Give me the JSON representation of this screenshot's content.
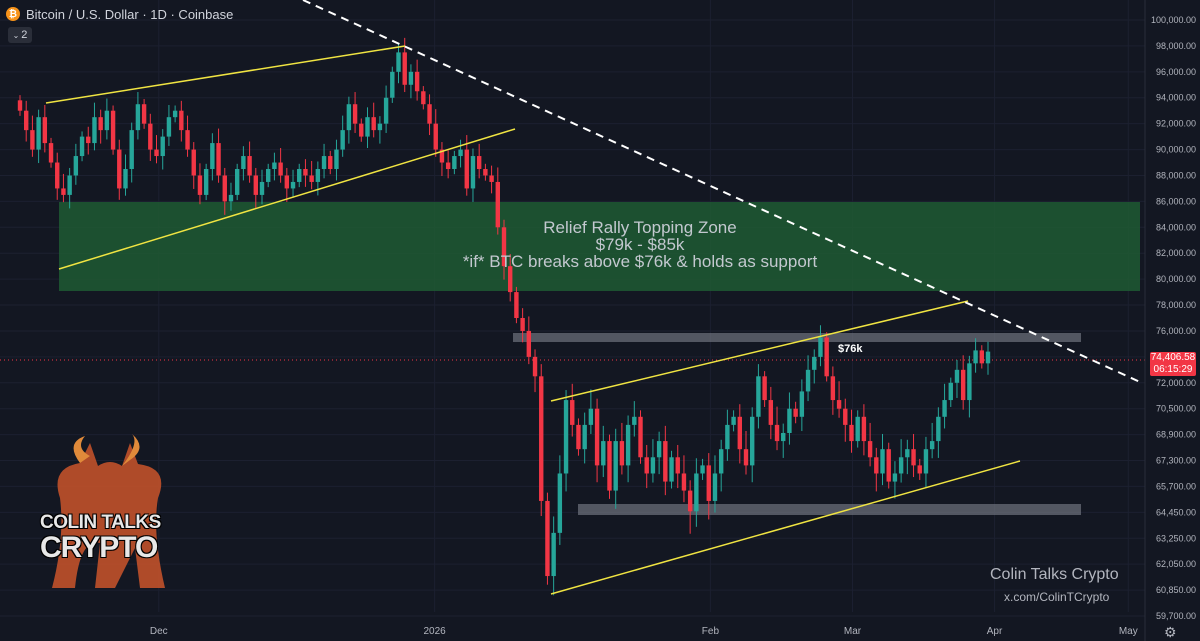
{
  "header": {
    "title": "Bitcoin / U.S. Dollar · 1D · Coinbase",
    "coin_symbol": "₿",
    "indicator_count": "2"
  },
  "annotations": {
    "zone_title": "Relief Rally Topping Zone",
    "zone_range": "$79k - $85k",
    "zone_condition": "*if* BTC breaks above $76k & holds as support",
    "level_label": "$76k",
    "brand": "Colin Talks Crypto",
    "handle": "x.com/ColinTCrypto",
    "logo_line1": "COLIN TALKS",
    "logo_line2": "CRYPTO"
  },
  "price_tag": {
    "price": "74,406.58",
    "countdown": "06:15:29"
  },
  "colors": {
    "up": "#26a69a",
    "down": "#f23645",
    "trend": "#f0e442",
    "zone": "#1e5a32",
    "background": "#131722"
  },
  "chart_data": {
    "type": "candlestick",
    "title": "Bitcoin / U.S. Dollar · 1D · Coinbase",
    "ylim": [
      59000,
      100800
    ],
    "y_ticks": [
      "100,000.00",
      "98,000.00",
      "96,000.00",
      "94,000.00",
      "92,000.00",
      "90,000.00",
      "88,000.00",
      "86,000.00",
      "84,000.00",
      "82,000.00",
      "80,000.00",
      "78,000.00",
      "76,000.00",
      "74,000.00",
      "72,000.00",
      "70,500.00",
      "68,900.00",
      "67,300.00",
      "65,700.00",
      "64,450.00",
      "63,250.00",
      "62,050.00",
      "60,850.00",
      "59,700.00"
    ],
    "x_ticks": [
      {
        "label": "Dec",
        "x": 0.17
      },
      {
        "label": "2026",
        "x": 0.5
      },
      {
        "label": "Feb",
        "x": 0.83
      },
      {
        "label": "Mar",
        "x": 1.0
      },
      {
        "label": "Apr",
        "x": 1.17
      },
      {
        "label": "May",
        "x": 1.33
      }
    ],
    "x_range": [
      -0.02,
      1.35
    ],
    "closes": [
      93000,
      91500,
      90000,
      92500,
      90500,
      89000,
      87000,
      86500,
      88000,
      89500,
      91000,
      90500,
      92500,
      91500,
      93000,
      90000,
      87000,
      88500,
      91500,
      93500,
      92000,
      90000,
      89500,
      91000,
      92500,
      93000,
      91500,
      90000,
      88000,
      86500,
      88500,
      90500,
      88000,
      86000,
      86500,
      88500,
      89500,
      88000,
      86500,
      87500,
      88500,
      89000,
      88000,
      87000,
      87500,
      88500,
      88000,
      87500,
      88500,
      89500,
      88500,
      90000,
      91500,
      93500,
      92000,
      91000,
      92500,
      91500,
      92000,
      94000,
      96000,
      97500,
      95000,
      96000,
      94500,
      93500,
      92000,
      90000,
      89000,
      88500,
      89500,
      90000,
      87000,
      89500,
      88500,
      88000,
      87500,
      84000,
      81000,
      79000,
      77000,
      76000,
      74000,
      72500,
      65000,
      61500,
      63500,
      66500,
      71000,
      69500,
      68000,
      69500,
      70500,
      67000,
      68500,
      65500,
      68500,
      67000,
      69500,
      70000,
      67500,
      66500,
      67500,
      68500,
      66000,
      67500,
      66500,
      65500,
      64500,
      66500,
      67000,
      65000,
      66500,
      68000,
      69500,
      70000,
      68000,
      67000,
      70000,
      72500,
      71000,
      69500,
      68500,
      69000,
      70500,
      70000,
      71500,
      73000,
      74000,
      75500,
      72500,
      71000,
      70500,
      69500,
      68500,
      70000,
      68500,
      67500,
      66500,
      68000,
      66000,
      66500,
      67500,
      68000,
      67000,
      66500,
      68000,
      68500,
      70000,
      71000,
      72000,
      73000,
      71000,
      73500,
      74500,
      73500,
      74406
    ]
  }
}
